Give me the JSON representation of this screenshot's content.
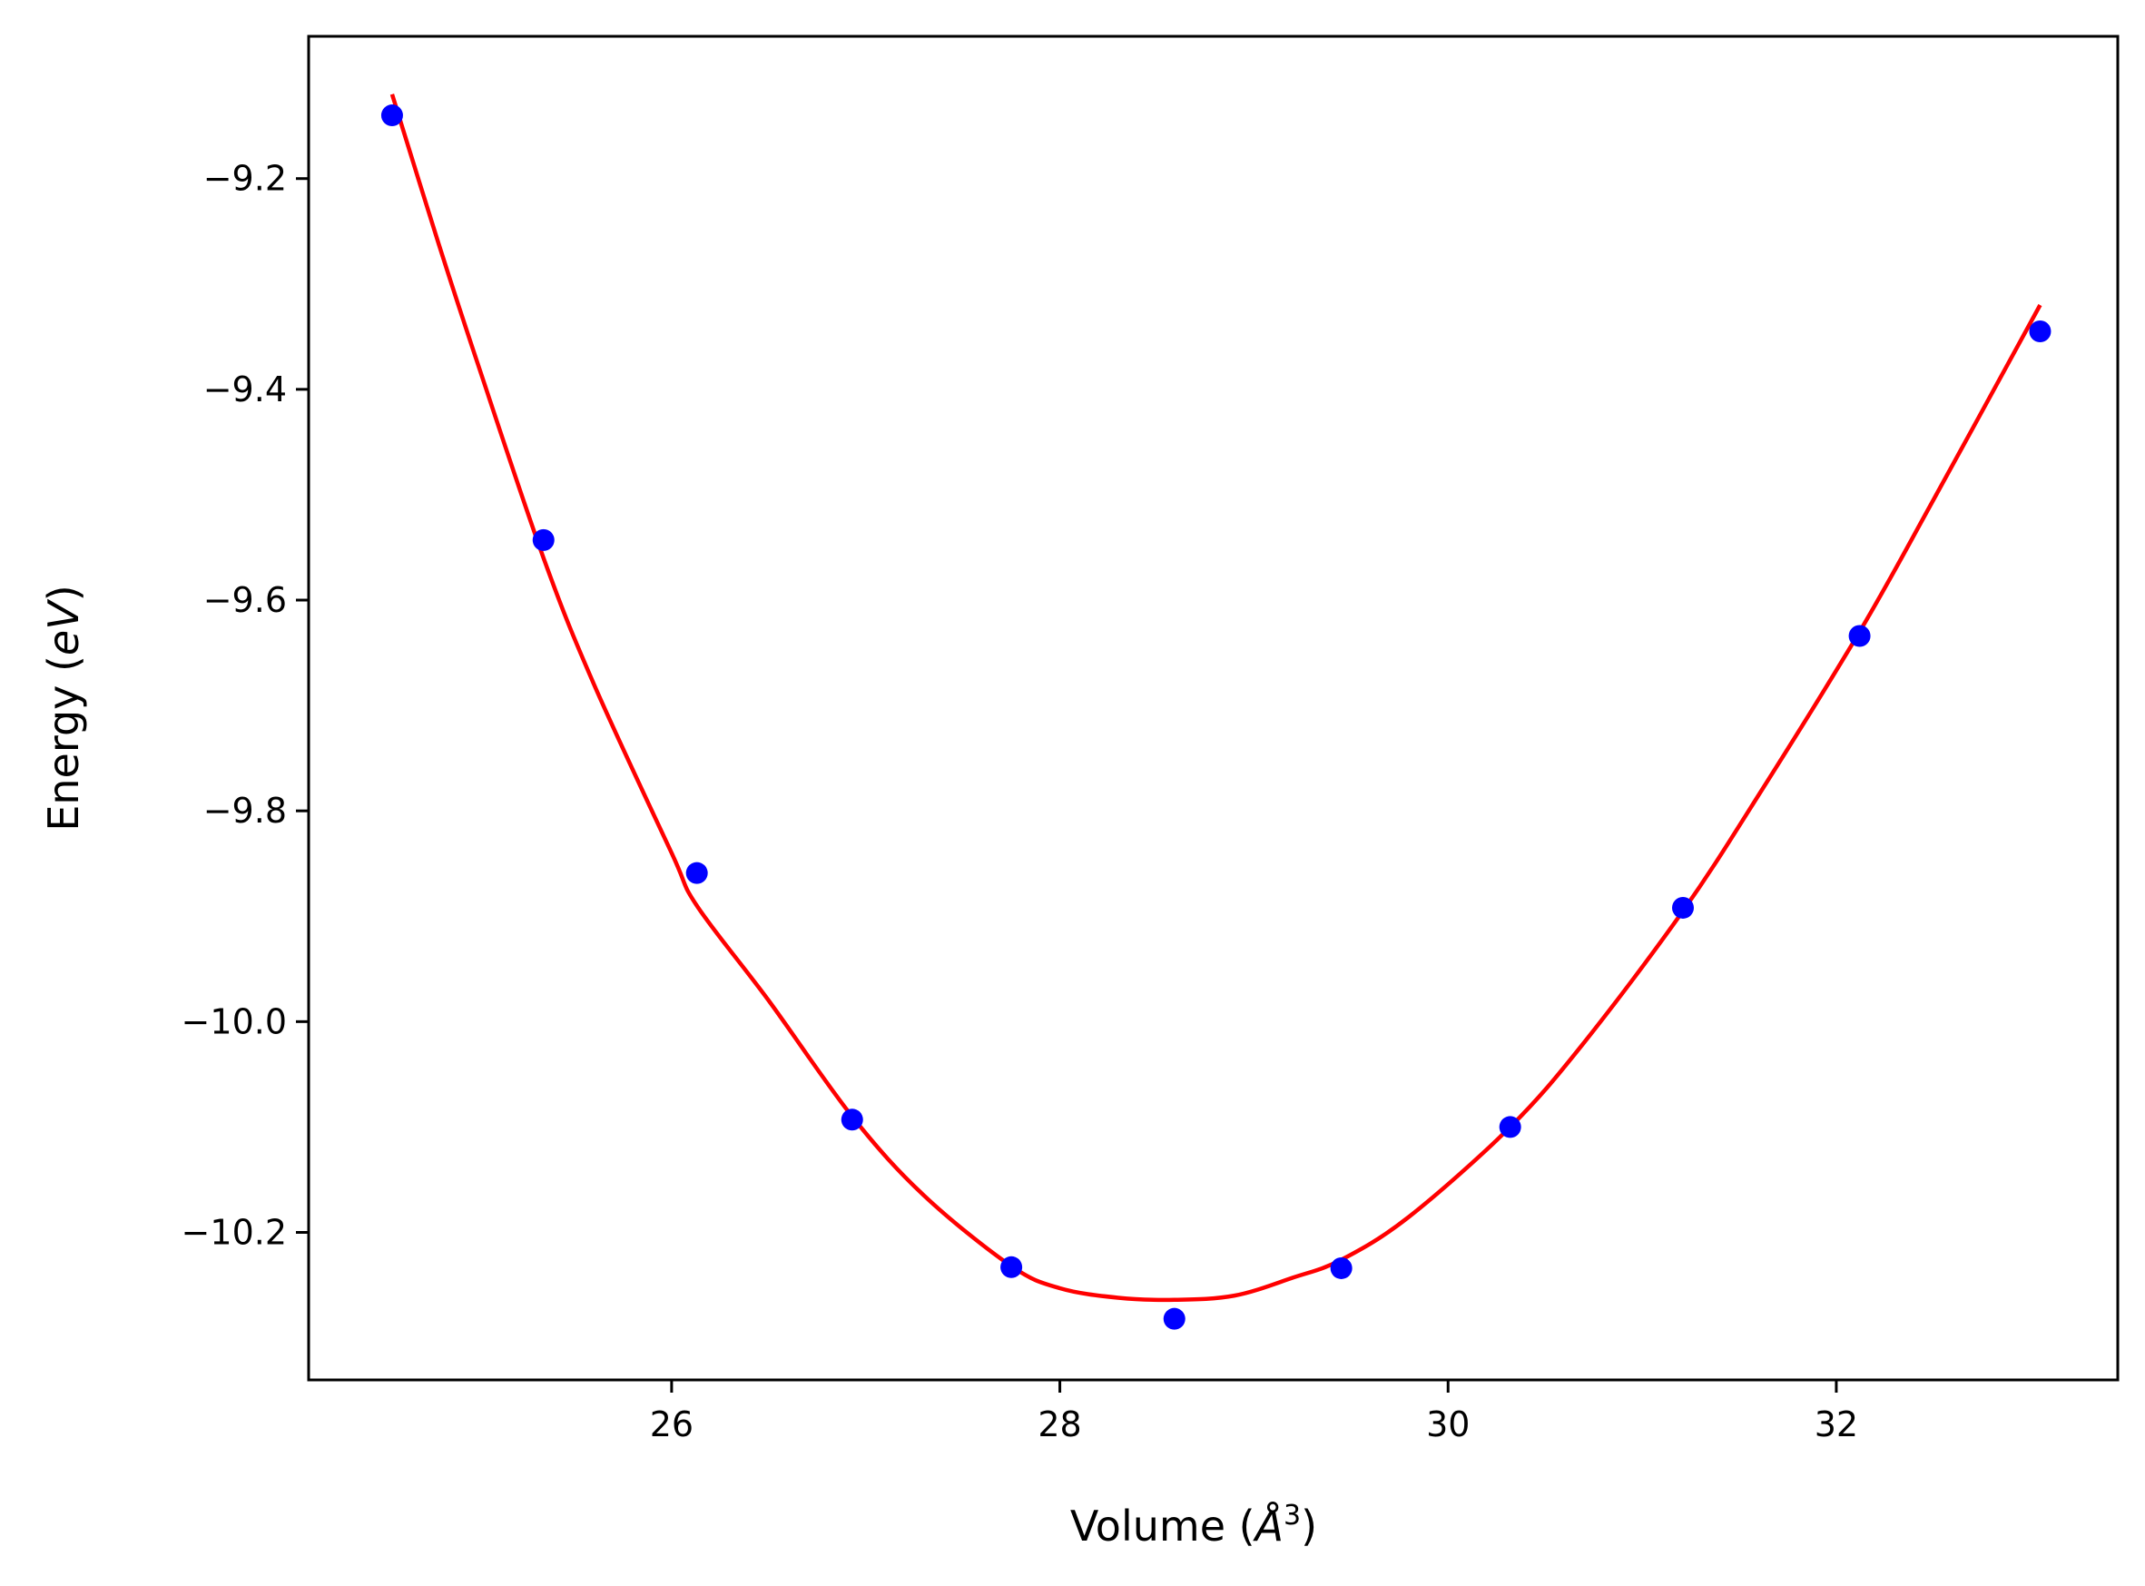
{
  "chart_data": {
    "type": "scatter",
    "title": "",
    "xlabel_parts": {
      "prefix": "Volume (",
      "unit_base": "Å",
      "unit_exp": "3",
      "suffix": ")"
    },
    "ylabel_parts": {
      "prefix": "Energy (",
      "unit": "eV",
      "suffix": ")"
    },
    "xlim": [
      24.13,
      33.45
    ],
    "ylim": [
      -10.34,
      -9.065
    ],
    "x_ticks": [
      26,
      28,
      30,
      32
    ],
    "x_tick_labels": [
      "26",
      "28",
      "30",
      "32"
    ],
    "y_ticks": [
      -9.2,
      -9.4,
      -9.6,
      -9.8,
      -10.0,
      -10.2
    ],
    "y_tick_labels": [
      "−9.2",
      "−9.4",
      "−9.6",
      "−9.8",
      "−10.0",
      "−10.2"
    ],
    "grid": false,
    "legend": "none",
    "series": [
      {
        "kind": "points",
        "color": "#0000ff",
        "x": [
          24.56,
          25.34,
          26.13,
          26.93,
          27.75,
          28.59,
          29.45,
          30.32,
          31.21,
          32.12,
          33.05
        ],
        "y": [
          -9.14,
          -9.543,
          -9.859,
          -10.093,
          -10.233,
          -10.282,
          -10.234,
          -10.1,
          -9.892,
          -9.634,
          -9.345
        ]
      },
      {
        "kind": "fit-curve",
        "color": "#ff0000",
        "x": [
          24.56,
          24.8,
          25.0,
          25.34,
          25.6,
          26.0,
          26.13,
          26.5,
          26.93,
          27.3,
          27.75,
          28.0,
          28.3,
          28.59,
          28.9,
          29.2,
          29.45,
          29.8,
          30.32,
          30.7,
          31.21,
          31.6,
          32.12,
          32.5,
          33.05
        ],
        "y": [
          -9.12,
          -9.262,
          -9.375,
          -9.56,
          -9.68,
          -9.84,
          -9.89,
          -9.98,
          -10.09,
          -10.165,
          -10.232,
          -10.253,
          -10.262,
          -10.264,
          -10.26,
          -10.243,
          -10.226,
          -10.185,
          -10.1,
          -10.02,
          -9.895,
          -9.785,
          -9.63,
          -9.505,
          -9.32
        ]
      }
    ]
  }
}
